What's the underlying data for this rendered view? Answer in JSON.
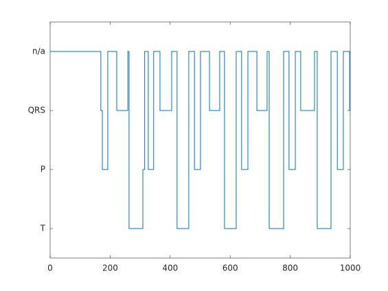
{
  "chart_data": {
    "type": "line",
    "step": true,
    "color": "#0072bd",
    "grid": false,
    "x": [
      0,
      169,
      169,
      174,
      174,
      192,
      192,
      222,
      222,
      259,
      259,
      263,
      263,
      309,
      309,
      315,
      315,
      327,
      327,
      345,
      345,
      366,
      366,
      405,
      405,
      423,
      423,
      462,
      462,
      481,
      481,
      501,
      501,
      531,
      531,
      565,
      565,
      581,
      581,
      620,
      620,
      638,
      638,
      659,
      659,
      689,
      689,
      723,
      723,
      730,
      730,
      778,
      778,
      796,
      796,
      817,
      817,
      835,
      835,
      881,
      881,
      890,
      890,
      936,
      936,
      957,
      957,
      977,
      977,
      998,
      998,
      1000
    ],
    "values": [
      4,
      4,
      3,
      3,
      2,
      2,
      4,
      4,
      3,
      3,
      4,
      4,
      1,
      1,
      2,
      2,
      4,
      4,
      2,
      2,
      4,
      4,
      3,
      3,
      4,
      4,
      1,
      1,
      4,
      4,
      2,
      2,
      4,
      4,
      3,
      3,
      4,
      4,
      1,
      1,
      4,
      4,
      2,
      2,
      4,
      4,
      3,
      3,
      4,
      4,
      1,
      1,
      4,
      4,
      2,
      2,
      4,
      4,
      3,
      3,
      4,
      4,
      1,
      1,
      4,
      4,
      2,
      2,
      4,
      4,
      3,
      3
    ],
    "xlim": [
      0,
      1000
    ],
    "xticks": [
      0,
      200,
      400,
      600,
      800,
      1000
    ],
    "ylim": [
      0.5,
      4.5
    ],
    "yticks": [
      {
        "value": 1,
        "label": "T"
      },
      {
        "value": 2,
        "label": "P"
      },
      {
        "value": 3,
        "label": "QRS"
      },
      {
        "value": 4,
        "label": "n/a"
      }
    ]
  }
}
